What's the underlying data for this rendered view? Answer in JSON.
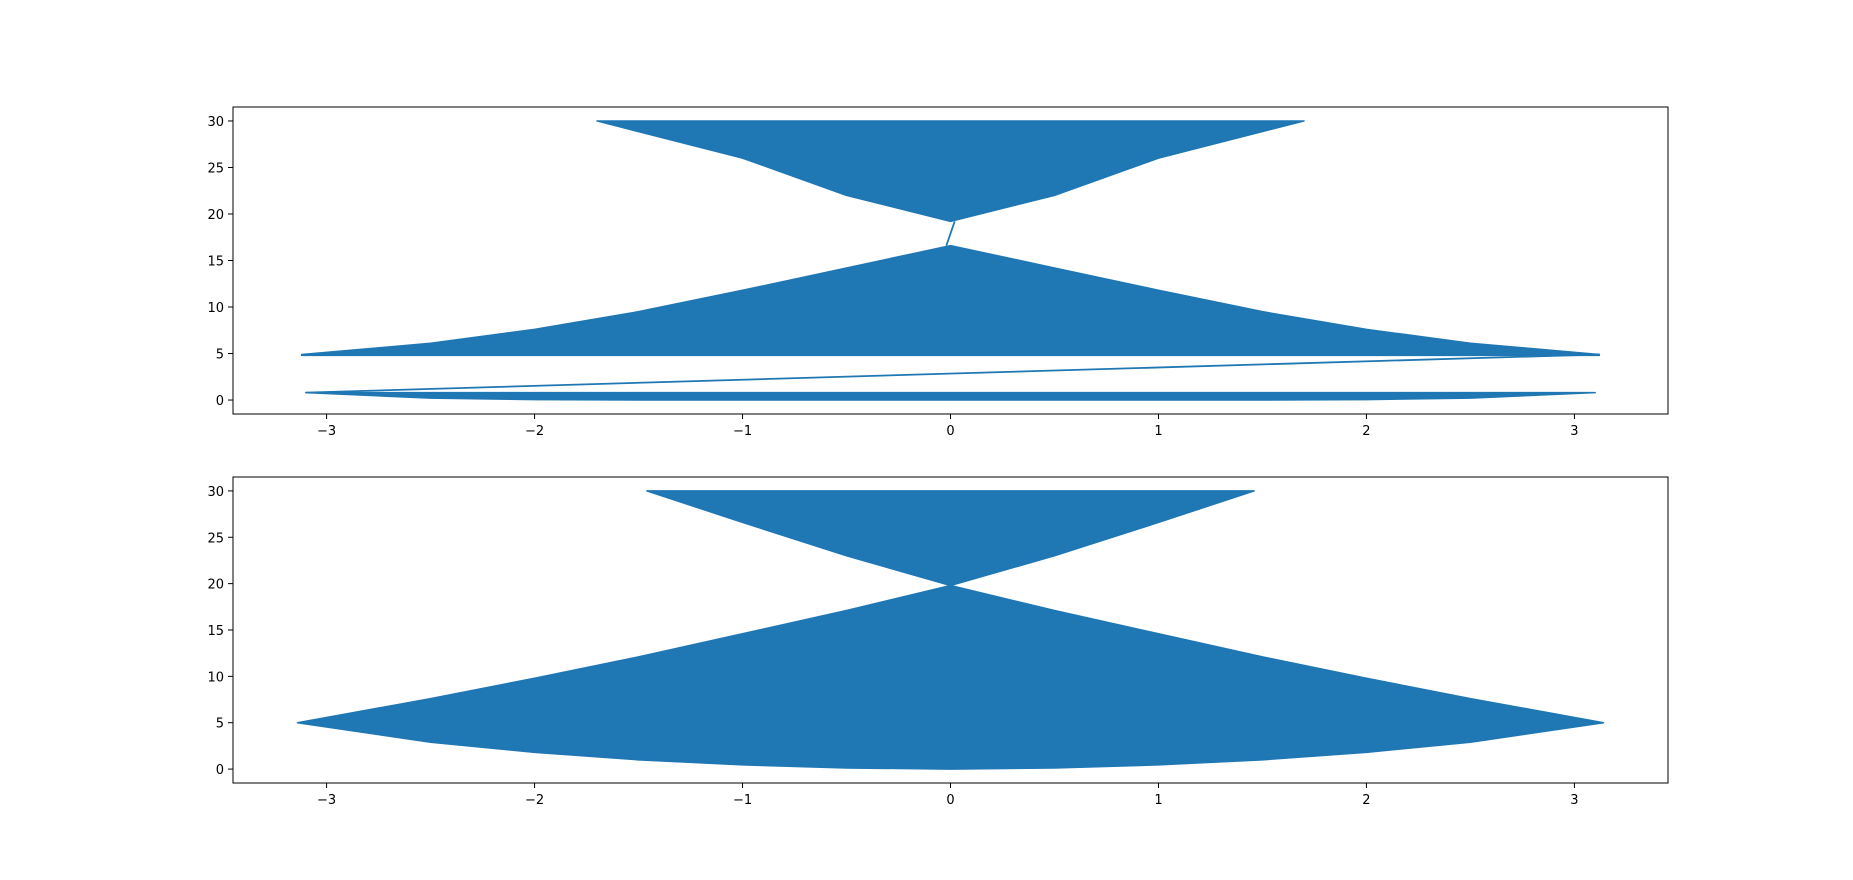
{
  "chart_data": [
    {
      "type": "line",
      "title": "",
      "xlabel": "",
      "ylabel": "",
      "xlim": [
        -3.45,
        3.45
      ],
      "ylim": [
        -1.5,
        31.5
      ],
      "xticks": [
        -3,
        -2,
        -1,
        0,
        1,
        2,
        3
      ],
      "yticks": [
        0,
        5,
        10,
        15,
        20,
        25,
        30
      ],
      "xtick_labels": [
        "−3",
        "−2",
        "−1",
        "0",
        "1",
        "2",
        "3"
      ],
      "ytick_labels": [
        "0",
        "5",
        "10",
        "15",
        "20",
        "25",
        "30"
      ],
      "grid": false,
      "legend": "none",
      "series": [
        {
          "color": "#1f77b4",
          "bands": [
            {
              "upper": {
                "x": [
                  -3.1,
                  -2.5,
                  -2.0,
                  -1.5,
                  -1.0,
                  -0.5,
                  0,
                  0.5,
                  1.0,
                  1.5,
                  2.0,
                  2.5,
                  3.1
                ],
                "y": [
                  0.8,
                  0.8,
                  0.8,
                  0.8,
                  0.8,
                  0.8,
                  0.8,
                  0.8,
                  0.8,
                  0.8,
                  0.8,
                  0.8,
                  0.8
                ]
              },
              "lower": {
                "x": [
                  -3.1,
                  -2.5,
                  -2.0,
                  -1.5,
                  -1.0,
                  -0.5,
                  0,
                  0.5,
                  1.0,
                  1.5,
                  2.0,
                  2.5,
                  3.1
                ],
                "y": [
                  0.8,
                  0.2,
                  0.05,
                  0,
                  0,
                  0,
                  0,
                  0,
                  0,
                  0,
                  0.05,
                  0.2,
                  0.8
                ]
              }
            },
            {
              "upper": {
                "x": [
                  -3.12,
                  -2.5,
                  -2.0,
                  -1.5,
                  -1.0,
                  -0.5,
                  0,
                  0.5,
                  1.0,
                  1.5,
                  2.0,
                  2.5,
                  3.12
                ],
                "y": [
                  4.9,
                  6.1,
                  7.6,
                  9.5,
                  11.8,
                  14.2,
                  16.6,
                  14.2,
                  11.8,
                  9.5,
                  7.6,
                  6.1,
                  4.9
                ]
              },
              "lower": {
                "x": [
                  -3.12,
                  3.12
                ],
                "y": [
                  4.8,
                  4.8
                ]
              }
            },
            {
              "upper": {
                "x": [
                  -1.7,
                  1.7
                ],
                "y": [
                  30,
                  30
                ]
              },
              "lower": {
                "x": [
                  -1.7,
                  -1.0,
                  -0.5,
                  0,
                  0.5,
                  1.0,
                  1.7
                ],
                "y": [
                  30,
                  26.0,
                  22.0,
                  19.2,
                  22.0,
                  26.0,
                  30
                ]
              }
            }
          ],
          "connectors": [
            {
              "x": [
                -3.1,
                3.12
              ],
              "y": [
                0.8,
                4.9
              ]
            },
            {
              "x": [
                -0.02,
                0.02
              ],
              "y": [
                16.6,
                19.2
              ]
            }
          ]
        }
      ]
    },
    {
      "type": "line",
      "title": "",
      "xlabel": "",
      "ylabel": "",
      "xlim": [
        -3.45,
        3.45
      ],
      "ylim": [
        -1.5,
        31.5
      ],
      "xticks": [
        -3,
        -2,
        -1,
        0,
        1,
        2,
        3
      ],
      "yticks": [
        0,
        5,
        10,
        15,
        20,
        25,
        30
      ],
      "xtick_labels": [
        "−3",
        "−2",
        "−1",
        "0",
        "1",
        "2",
        "3"
      ],
      "ytick_labels": [
        "0",
        "5",
        "10",
        "15",
        "20",
        "25",
        "30"
      ],
      "grid": false,
      "legend": "none",
      "series": [
        {
          "color": "#1f77b4",
          "bands": [
            {
              "upper": {
                "x": [
                  -3.14,
                  -2.5,
                  -2.0,
                  -1.5,
                  -1.0,
                  -0.5,
                  0,
                  0.5,
                  1.0,
                  1.5,
                  2.0,
                  2.5,
                  3.14
                ],
                "y": [
                  5.0,
                  7.6,
                  9.8,
                  12.1,
                  14.6,
                  17.1,
                  19.8,
                  17.1,
                  14.6,
                  12.1,
                  9.8,
                  7.6,
                  5.0
                ]
              },
              "lower": {
                "x": [
                  -3.14,
                  -2.5,
                  -2.0,
                  -1.5,
                  -1.0,
                  -0.5,
                  0,
                  0.5,
                  1.0,
                  1.5,
                  2.0,
                  2.5,
                  3.14
                ],
                "y": [
                  5.0,
                  2.9,
                  1.8,
                  1.0,
                  0.45,
                  0.12,
                  0,
                  0.12,
                  0.45,
                  1.0,
                  1.8,
                  2.9,
                  5.0
                ]
              }
            },
            {
              "upper": {
                "x": [
                  -1.46,
                  1.46
                ],
                "y": [
                  30,
                  30
                ]
              },
              "lower": {
                "x": [
                  -1.46,
                  -1.0,
                  -0.5,
                  0,
                  0.5,
                  1.0,
                  1.46
                ],
                "y": [
                  30,
                  26.6,
                  23.0,
                  19.8,
                  23.0,
                  26.6,
                  30
                ]
              }
            }
          ],
          "connectors": []
        }
      ]
    }
  ]
}
